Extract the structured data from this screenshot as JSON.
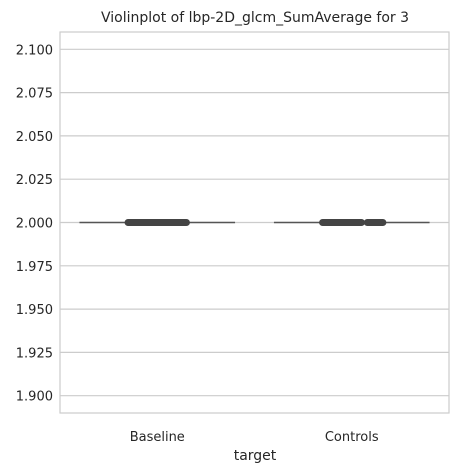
{
  "chart_data": {
    "type": "violin",
    "title": "Violinplot of lbp-2D_glcm_SumAverage for 3",
    "xlabel": "target",
    "ylabel": "",
    "categories": [
      "Baseline",
      "Controls"
    ],
    "ylim": [
      1.89,
      2.11
    ],
    "yticks": [
      "1.900",
      "1.925",
      "1.950",
      "1.975",
      "2.000",
      "2.025",
      "2.050",
      "2.075",
      "2.100"
    ],
    "series": [
      {
        "category": "Baseline",
        "value": 2.0,
        "box_range": [
          2.0,
          2.0
        ],
        "highlighted_segments": [
          [
            -0.15,
            0.15
          ]
        ]
      },
      {
        "category": "Controls",
        "value": 2.0,
        "box_range": [
          2.0,
          2.0
        ],
        "highlighted_segments": [
          [
            -0.15,
            0.05
          ],
          [
            0.08,
            0.16
          ]
        ]
      }
    ],
    "grid": "horizontal",
    "colors": {
      "grid": "#cccccc",
      "line": "#555555",
      "box": "#444444",
      "spine": "#cccccc"
    }
  }
}
